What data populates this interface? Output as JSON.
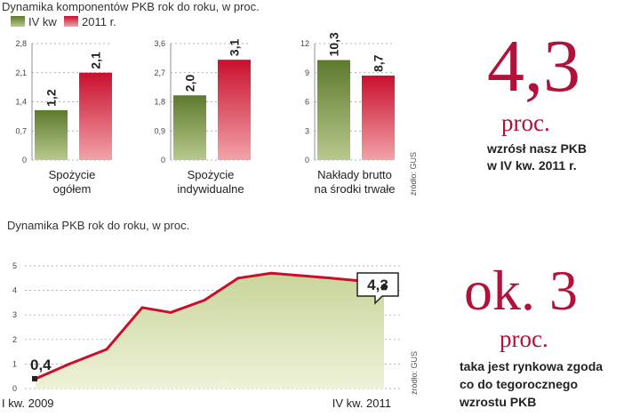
{
  "chart_data": [
    {
      "type": "bar",
      "title": "Dynamika komponentów PKB rok do roku, w proc.",
      "legend": [
        "IV kw",
        "2011 r."
      ],
      "colors": {
        "series1": "#6f8a3a",
        "series2": "#c8102e"
      },
      "panels": [
        {
          "category": "Spożycie ogółem",
          "category_lines": [
            "Spożycie",
            "ogółem"
          ],
          "values": [
            1.2,
            2.1
          ],
          "value_labels": [
            "1,2",
            "2,1"
          ],
          "ylim": [
            0,
            2.8
          ],
          "ticks": [
            "0",
            "0,7",
            "1,4",
            "2,1",
            "2,8"
          ]
        },
        {
          "category": "Spożycie indywidualne",
          "category_lines": [
            "Spożycie",
            "indywidualne"
          ],
          "values": [
            2.0,
            3.1
          ],
          "value_labels": [
            "2,0",
            "3,1"
          ],
          "ylim": [
            0,
            3.6
          ],
          "ticks": [
            "0",
            "0,9",
            "1,8",
            "2,7",
            "3,6"
          ]
        },
        {
          "category": "Nakłady brutto na środki trwałe",
          "category_lines": [
            "Nakłady brutto",
            "na środki trwałe"
          ],
          "values": [
            10.3,
            8.7
          ],
          "value_labels": [
            "10,3",
            "8,7"
          ],
          "ylim": [
            0,
            12
          ],
          "ticks": [
            "0",
            "3",
            "6",
            "9",
            "12"
          ]
        }
      ],
      "source": "źródło: GUS"
    },
    {
      "type": "area",
      "title": "Dynamika PKB rok do roku, w proc.",
      "x_labels": [
        "I kw. 2009",
        "IV kw. 2011"
      ],
      "values": [
        0.4,
        1.0,
        1.6,
        3.3,
        3.1,
        3.6,
        4.5,
        4.7,
        4.5,
        4.3
      ],
      "first_label": "0,4",
      "last_label": "4,3",
      "ylim": [
        0,
        5
      ],
      "ticks": [
        "0",
        "1",
        "2",
        "3",
        "4",
        "5"
      ],
      "line_color": "#c8102e",
      "source": "źródło: GUS"
    }
  ],
  "callouts": [
    {
      "big": "4,3",
      "unit": "proc.",
      "lines": [
        "wzrósł nasz PKB",
        "w IV kw. 2011 r."
      ]
    },
    {
      "big": "ok. 3",
      "unit": "proc.",
      "lines": [
        "taka jest rynkowa zgoda",
        "co do tegorocznego",
        "wzrostu PKB"
      ]
    }
  ]
}
